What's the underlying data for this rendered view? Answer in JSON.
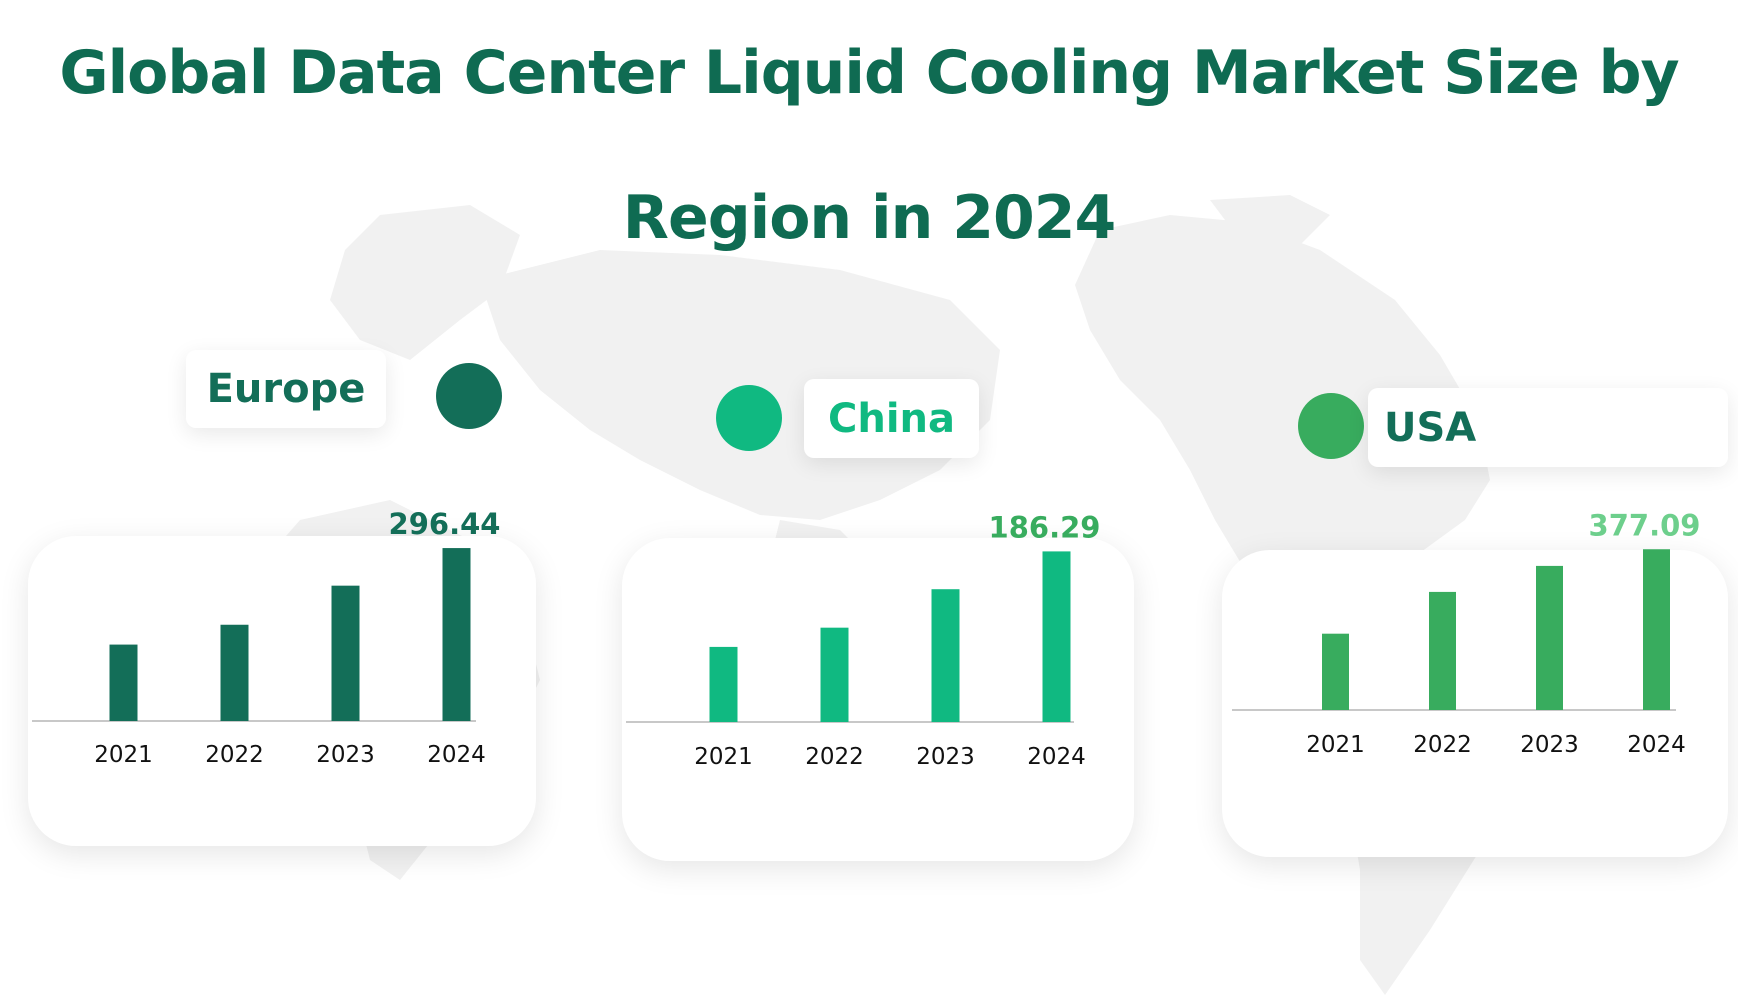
{
  "title": {
    "line1": "Global Data Center Liquid Cooling Market Size by",
    "line2": "Region in 2024"
  },
  "colors": {
    "title": "#0f6b52",
    "europe": "#136e58",
    "china": "#10b981",
    "usa": "#38ac5e",
    "usa_value": "#6dcf8c",
    "baseline": "#c8c8c8",
    "map": "#f1f1f1"
  },
  "decorations": {
    "background": "world-map",
    "markers": "circle"
  },
  "chart_data": [
    {
      "type": "bar",
      "region": "Europe",
      "categories": [
        "2021",
        "2022",
        "2023",
        "2024"
      ],
      "values": [
        131,
        165,
        232,
        296.44
      ],
      "labeled_value": "296.44",
      "ylim": [
        0,
        300
      ],
      "grid": false
    },
    {
      "type": "bar",
      "region": "China",
      "categories": [
        "2021",
        "2022",
        "2023",
        "2024"
      ],
      "values": [
        82,
        103,
        145,
        186.29
      ],
      "labeled_value": "186.29",
      "ylim": [
        0,
        190
      ],
      "grid": false
    },
    {
      "type": "bar",
      "region": "USA",
      "categories": [
        "2021",
        "2022",
        "2023",
        "2024"
      ],
      "values": [
        179,
        277,
        338,
        377.09
      ],
      "labeled_value": "377.09",
      "ylim": [
        0,
        380
      ],
      "grid": false
    }
  ]
}
